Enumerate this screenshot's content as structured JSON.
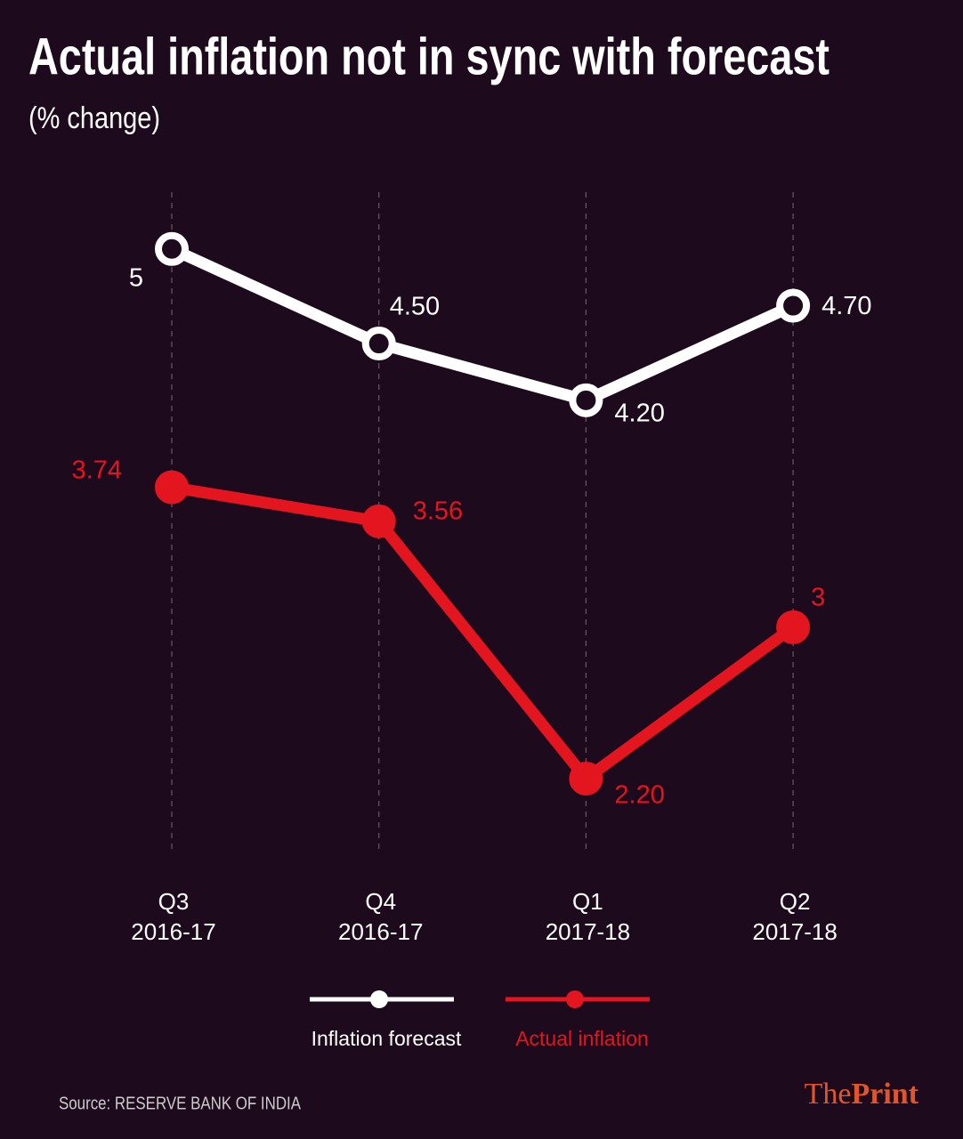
{
  "chart_data": {
    "type": "line",
    "title": "Actual inflation not in sync with forecast",
    "subtitle": "(% change)",
    "categories": [
      [
        "Q3",
        "2016-17"
      ],
      [
        "Q4",
        "2016-17"
      ],
      [
        "Q1",
        "2017-18"
      ],
      [
        "Q2",
        "2017-18"
      ]
    ],
    "series": [
      {
        "name": "Inflation forecast",
        "color": "#ffffff",
        "values": [
          5,
          4.5,
          4.2,
          4.7
        ],
        "value_labels": [
          "5",
          "4.50",
          "4.20",
          "4.70"
        ]
      },
      {
        "name": "Actual inflation",
        "color": "#e3161f",
        "values": [
          3.74,
          3.56,
          2.2,
          3
        ],
        "value_labels": [
          "3.74",
          "3.56",
          "2.20",
          "3"
        ]
      }
    ],
    "ylim": [
      1.8,
      5.3
    ],
    "grid": true,
    "legend": "bottom",
    "source": "Source: RESERVE BANK OF INDIA",
    "logo": {
      "first": "The",
      "second": "Print"
    }
  }
}
